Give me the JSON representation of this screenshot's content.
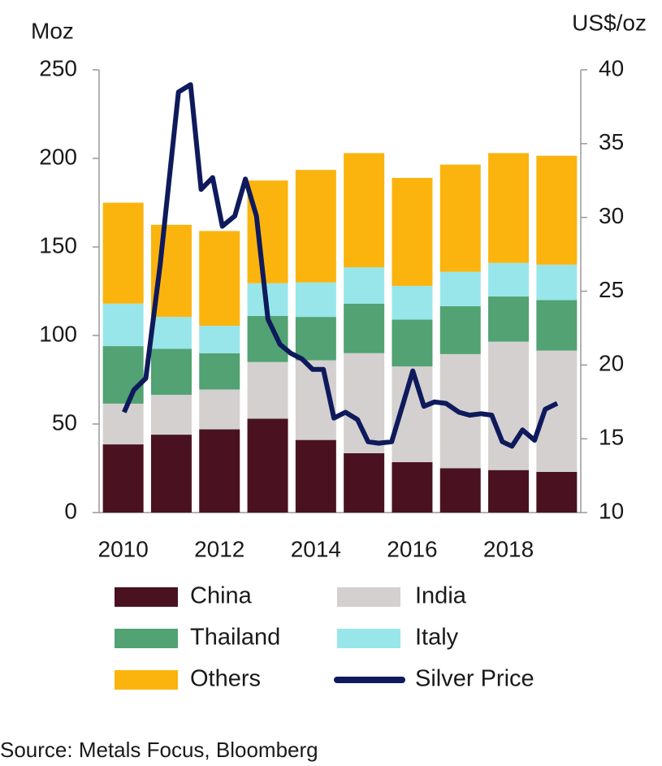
{
  "chart_data": {
    "type": "bar",
    "ylabel": "Moz",
    "y2label": "US$/oz",
    "source": "Source: Metals Focus, Bloomberg",
    "categories": [
      "2010",
      null,
      "2012",
      null,
      "2014",
      null,
      "2016",
      null,
      "2018",
      null
    ],
    "ylim": [
      0,
      250
    ],
    "yticks": [
      0,
      50,
      100,
      150,
      200,
      250
    ],
    "y2lim": [
      10,
      40
    ],
    "y2ticks": [
      10,
      15,
      20,
      25,
      30,
      35,
      40
    ],
    "xlim": [
      2009.48,
      2019.49
    ],
    "stacked": true,
    "series": [
      {
        "name": "China",
        "color": "#4a1220",
        "values": [
          38.5,
          44,
          47,
          53,
          41,
          33.5,
          28.5,
          25,
          24,
          23
        ]
      },
      {
        "name": "India",
        "color": "#d4d0d0",
        "values": [
          23,
          22.5,
          22.5,
          32,
          45,
          56.5,
          54,
          64.5,
          72.5,
          68.5
        ]
      },
      {
        "name": "Thailand",
        "color": "#52a273",
        "values": [
          32.5,
          26,
          20.5,
          26,
          24.5,
          28,
          26.5,
          27,
          25.5,
          28.5
        ]
      },
      {
        "name": "Italy",
        "color": "#98e6ea",
        "values": [
          24,
          18,
          15.5,
          18.5,
          19.5,
          20.5,
          19,
          19.5,
          19,
          20
        ]
      },
      {
        "name": "Others",
        "color": "#fbb40e",
        "values": [
          57,
          52,
          53.5,
          58,
          63.5,
          64.5,
          61,
          60.5,
          62,
          61.5
        ]
      },
      {
        "name": "Silver Price",
        "type": "line",
        "axis": "y2",
        "color": "#0f1a5c",
        "x": [
          2010.0,
          2010.2,
          2010.45,
          2010.75,
          2011.13,
          2011.38,
          2011.6,
          2011.84,
          2012.04,
          2012.3,
          2012.52,
          2012.75,
          2012.99,
          2013.24,
          2013.46,
          2013.7,
          2013.92,
          2014.14,
          2014.36,
          2014.6,
          2014.85,
          2015.07,
          2015.29,
          2015.56,
          2015.8,
          2016.0,
          2016.23,
          2016.45,
          2016.69,
          2016.96,
          2017.18,
          2017.42,
          2017.64,
          2017.86,
          2018.06,
          2018.28,
          2018.53,
          2018.75,
          2019.0
        ],
        "values": [
          16.8,
          18.3,
          19.1,
          26.8,
          38.5,
          39,
          31.9,
          32.7,
          29.4,
          30.1,
          32.6,
          30.1,
          23.1,
          21.4,
          20.8,
          20.4,
          19.7,
          19.7,
          16.4,
          16.8,
          16.3,
          14.8,
          14.7,
          14.8,
          17.4,
          19.6,
          17.2,
          17.5,
          17.4,
          16.8,
          16.6,
          16.7,
          16.6,
          14.8,
          14.5,
          15.6,
          14.9,
          17.0,
          17.4
        ]
      }
    ],
    "legend": "bottom"
  }
}
